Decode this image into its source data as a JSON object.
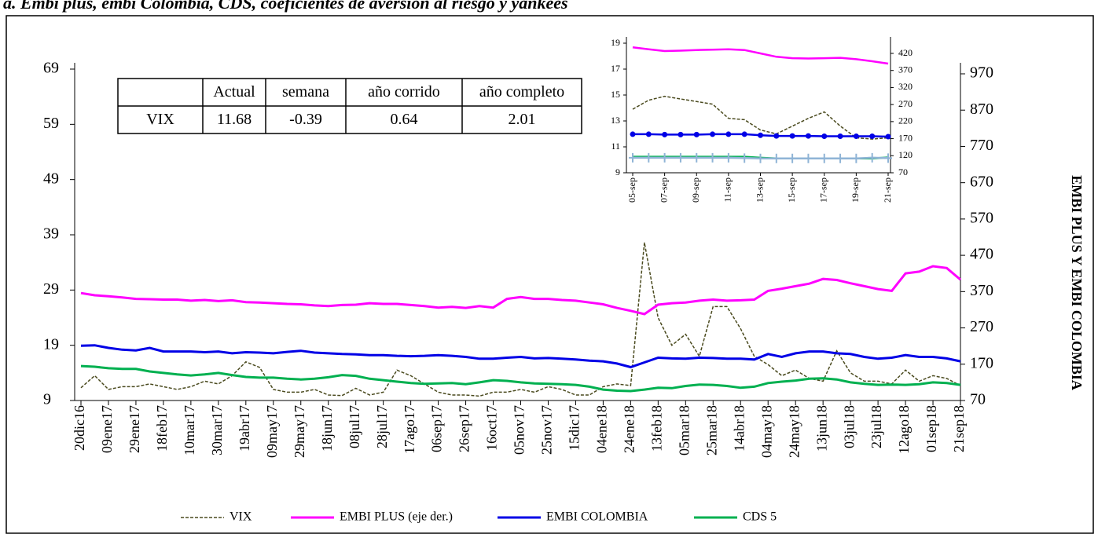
{
  "chart_data": [
    {
      "type": "line",
      "title": "a. Embi plus, embi Colombia, CDS, coeficientes de aversión al riesgo y yankees",
      "y2_label": "EMBI PLUS Y EMBI COLOMBIA",
      "categories": [
        "20dic16",
        null,
        "09ene17",
        null,
        "29ene17",
        null,
        "18feb17",
        null,
        "10mar17",
        null,
        "30mar17",
        null,
        "19abr17",
        null,
        "09may17",
        null,
        "29may17",
        null,
        "18jun17",
        null,
        "08jul17",
        null,
        "28jul17",
        null,
        "17ago17",
        null,
        "06sep17",
        null,
        "26sep17",
        null,
        "16oct17",
        null,
        "05nov17",
        null,
        "25nov17",
        null,
        "15dic17",
        null,
        "04ene18",
        null,
        "24ene18",
        null,
        "13feb18",
        null,
        "05mar18",
        null,
        "25mar18",
        null,
        "14abr18",
        null,
        "04may18",
        null,
        "24may18",
        null,
        "13jun18",
        null,
        "03jul18",
        null,
        "23jul18",
        null,
        "12ago18",
        null,
        "01sep18",
        null,
        "21sep18"
      ],
      "ylim": [
        9,
        69
      ],
      "yticks": [
        9,
        19,
        29,
        39,
        49,
        59,
        69
      ],
      "y2lim": [
        70,
        970
      ],
      "y2ticks": [
        70,
        170,
        270,
        370,
        470,
        570,
        670,
        770,
        870,
        970
      ],
      "legend": "bottom",
      "series": [
        {
          "name": "VIX",
          "color": "#4a4a1e",
          "dashed": true,
          "axis": "y",
          "values": [
            11.3,
            13.5,
            11,
            11.5,
            11.5,
            12,
            11.5,
            11,
            11.5,
            12.5,
            12,
            13.5,
            16,
            15,
            11,
            10.5,
            10.5,
            11,
            10,
            9.9,
            11.2,
            10,
            10.5,
            14.5,
            13.5,
            12,
            10.5,
            10,
            10,
            9.8,
            10.5,
            10.5,
            11,
            10.5,
            11.5,
            11,
            10,
            10,
            11.5,
            12,
            11.7,
            37.6,
            24,
            19,
            21,
            17,
            26,
            26,
            22,
            17,
            15.5,
            13.5,
            14.5,
            13,
            12.5,
            18,
            14,
            12.5,
            12.5,
            12,
            14.5,
            12.5,
            13.5,
            13,
            11.7
          ]
        },
        {
          "name": "EMBI PLUS (eje der.)",
          "color": "#ff00ff",
          "axis": "y2",
          "values": [
            366,
            360,
            357,
            354,
            350,
            349,
            348,
            348,
            345,
            347,
            344,
            346,
            341,
            340,
            338,
            336,
            335,
            332,
            330,
            333,
            334,
            338,
            336,
            336,
            333,
            330,
            326,
            328,
            325,
            330,
            326,
            350,
            355,
            350,
            350,
            347,
            345,
            340,
            335,
            325,
            317,
            308,
            334,
            338,
            340,
            345,
            348,
            345,
            346,
            348,
            372,
            378,
            385,
            392,
            405,
            402,
            393,
            385,
            377,
            372,
            420,
            425,
            440,
            435,
            403
          ]
        },
        {
          "name": "EMBI COLOMBIA",
          "color": "#0000e6",
          "axis": "y2",
          "values": [
            221,
            222,
            215,
            210,
            208,
            215,
            205,
            205,
            205,
            203,
            205,
            200,
            203,
            202,
            200,
            204,
            207,
            202,
            200,
            198,
            197,
            195,
            195,
            193,
            192,
            193,
            195,
            193,
            190,
            185,
            185,
            188,
            190,
            186,
            187,
            185,
            183,
            180,
            178,
            172,
            162,
            175,
            188,
            186,
            185,
            188,
            187,
            185,
            185,
            183,
            198,
            190,
            200,
            205,
            205,
            200,
            198,
            190,
            185,
            188,
            195,
            190,
            190,
            186,
            178
          ]
        },
        {
          "name": "CDS 5",
          "color": "#00b050",
          "axis": "y2",
          "values": [
            165,
            163,
            159,
            157,
            157,
            150,
            146,
            142,
            139,
            142,
            146,
            140,
            135,
            133,
            133,
            130,
            128,
            130,
            134,
            140,
            138,
            130,
            126,
            122,
            118,
            116,
            117,
            118,
            115,
            120,
            126,
            124,
            120,
            117,
            116,
            115,
            113,
            108,
            100,
            97,
            96,
            100,
            105,
            104,
            110,
            114,
            113,
            110,
            105,
            108,
            118,
            122,
            125,
            130,
            131,
            128,
            120,
            116,
            113,
            114,
            113,
            115,
            120,
            118,
            113
          ]
        }
      ],
      "table": {
        "columns": [
          "Actual",
          "semana",
          "año corrido",
          "año completo"
        ],
        "rows": [
          [
            "VIX",
            "11.68",
            "-0.39",
            "0.64",
            "2.01"
          ]
        ]
      }
    },
    {
      "type": "line",
      "categories": [
        "05-sep",
        null,
        "07-sep",
        null,
        "09-sep",
        null,
        "11-sep",
        null,
        "13-sep",
        null,
        "15-sep",
        null,
        "17-sep",
        null,
        "19-sep",
        null,
        "21-sep"
      ],
      "ylim": [
        9,
        19
      ],
      "yticks": [
        9,
        11,
        13,
        15,
        17,
        19
      ],
      "y2lim": [
        70,
        420
      ],
      "y2ticks": [
        70,
        120,
        170,
        220,
        270,
        320,
        370,
        420
      ],
      "series": [
        {
          "color": "#ff00ff",
          "axis": "y2",
          "values": [
            438,
            432,
            427,
            428,
            430,
            431,
            432,
            430,
            420,
            410,
            406,
            405,
            406,
            407,
            403,
            397,
            390
          ]
        },
        {
          "color": "#4a4a1e",
          "dashed": true,
          "axis": "y",
          "values": [
            13.9,
            14.6,
            14.9,
            14.7,
            14.5,
            14.3,
            13.2,
            13.1,
            12.3,
            12.0,
            12.6,
            13.2,
            13.7,
            12.6,
            11.7,
            11.6,
            11.7
          ]
        },
        {
          "color": "#0000e6",
          "axis": "y2",
          "marker": "circle",
          "values": [
            183,
            183,
            182,
            182,
            182,
            183,
            183,
            183,
            180,
            178,
            178,
            178,
            177,
            177,
            177,
            177,
            176
          ]
        },
        {
          "color": "#00b050",
          "axis": "y2",
          "values": [
            117,
            117,
            117,
            117,
            117,
            117,
            117,
            117,
            114,
            112,
            112,
            112,
            112,
            112,
            112,
            112,
            115
          ]
        },
        {
          "color": "#8fb4d6",
          "axis": "y2",
          "marker": "plus",
          "values": [
            114,
            114,
            114,
            114,
            114,
            114,
            114,
            113,
            112,
            112,
            112,
            112,
            112,
            112,
            112,
            114,
            113
          ]
        }
      ]
    }
  ]
}
